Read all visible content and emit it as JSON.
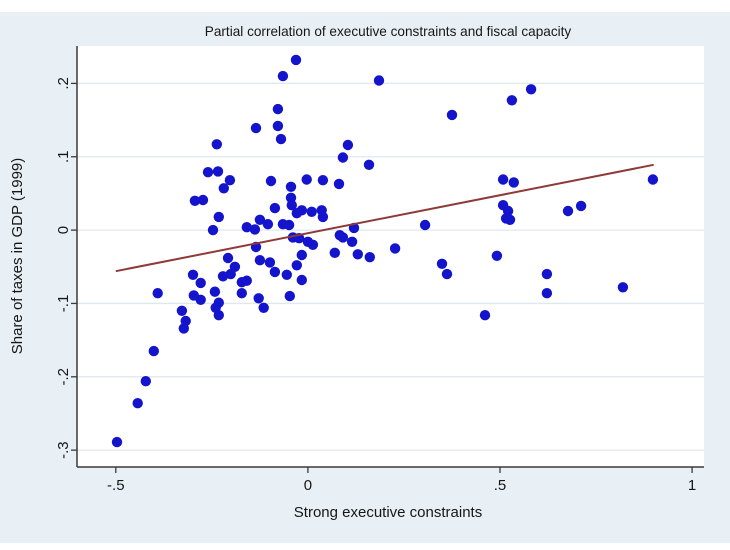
{
  "colors": {
    "figure_background": "#e9f0f5",
    "page_background": "#ffffff",
    "plot_background": "#ffffff",
    "gridline": "#dde8ef",
    "axis": "#3a3a38",
    "marker": "#1414cc",
    "fit_line": "#8e3a38",
    "text": "#161616"
  },
  "chart_data": {
    "type": "scatter",
    "title": "Partial correlation of executive constraints and fiscal capacity",
    "xlabel": "Strong executive constraints",
    "ylabel": "Share of taxes in GDP (1999)",
    "xlim": [
      -0.601,
      1.031
    ],
    "ylim": [
      -0.323,
      0.251
    ],
    "grid": "horizontal",
    "legend": false,
    "x_ticks": [
      {
        "value": -0.5,
        "label": "-.5"
      },
      {
        "value": 0,
        "label": "0"
      },
      {
        "value": 0.5,
        "label": ".5"
      },
      {
        "value": 1,
        "label": "1"
      }
    ],
    "y_ticks": [
      {
        "value": 0.2,
        "label": ".2"
      },
      {
        "value": 0.1,
        "label": ".1"
      },
      {
        "value": 0,
        "label": "0"
      },
      {
        "value": -0.1,
        "label": "-.1"
      },
      {
        "value": -0.2,
        "label": "-.2"
      },
      {
        "value": -0.3,
        "label": "-.3"
      }
    ],
    "series": [
      {
        "name": "observations",
        "type": "scatter",
        "points": [
          [
            -0.031,
            0.232
          ],
          [
            -0.065,
            0.21
          ],
          [
            0.185,
            0.204
          ],
          [
            -0.078,
            0.165
          ],
          [
            -0.135,
            0.139
          ],
          [
            -0.078,
            0.142
          ],
          [
            -0.07,
            0.124
          ],
          [
            -0.237,
            0.117
          ],
          [
            0.104,
            0.116
          ],
          [
            0.091,
            0.099
          ],
          [
            0.159,
            0.089
          ],
          [
            0.375,
            0.157
          ],
          [
            0.531,
            0.177
          ],
          [
            0.581,
            0.192
          ],
          [
            0.898,
            0.069
          ],
          [
            -0.26,
            0.079
          ],
          [
            -0.234,
            0.08
          ],
          [
            -0.203,
            0.068
          ],
          [
            -0.219,
            0.057
          ],
          [
            -0.294,
            0.04
          ],
          [
            -0.273,
            0.041
          ],
          [
            -0.096,
            0.067
          ],
          [
            -0.044,
            0.059
          ],
          [
            -0.003,
            0.069
          ],
          [
            0.039,
            0.068
          ],
          [
            0.081,
            0.063
          ],
          [
            -0.044,
            0.044
          ],
          [
            -0.042,
            0.034
          ],
          [
            -0.086,
            0.03
          ],
          [
            -0.016,
            0.027
          ],
          [
            -0.029,
            0.023
          ],
          [
            0.01,
            0.025
          ],
          [
            0.036,
            0.027
          ],
          [
            0.039,
            0.018
          ],
          [
            -0.125,
            0.014
          ],
          [
            -0.104,
            0.008
          ],
          [
            -0.065,
            0.008
          ],
          [
            -0.049,
            0.007
          ],
          [
            -0.232,
            0.018
          ],
          [
            -0.247,
            0.0
          ],
          [
            -0.159,
            0.004
          ],
          [
            -0.138,
            0.001
          ],
          [
            0.305,
            0.007
          ],
          [
            0.508,
            0.069
          ],
          [
            0.536,
            0.065
          ],
          [
            0.508,
            0.034
          ],
          [
            0.521,
            0.026
          ],
          [
            0.516,
            0.016
          ],
          [
            0.526,
            0.014
          ],
          [
            0.677,
            0.026
          ],
          [
            0.711,
            0.033
          ],
          [
            0.12,
            0.003
          ],
          [
            0.083,
            -0.007
          ],
          [
            0.091,
            -0.01
          ],
          [
            0.115,
            -0.016
          ],
          [
            0.13,
            -0.033
          ],
          [
            0.161,
            -0.037
          ],
          [
            0.227,
            -0.025
          ],
          [
            -0.039,
            -0.01
          ],
          [
            -0.023,
            -0.011
          ],
          [
            0.0,
            -0.016
          ],
          [
            0.013,
            -0.02
          ],
          [
            0.07,
            -0.031
          ],
          [
            -0.016,
            -0.034
          ],
          [
            -0.135,
            -0.023
          ],
          [
            -0.208,
            -0.038
          ],
          [
            -0.19,
            -0.05
          ],
          [
            -0.125,
            -0.041
          ],
          [
            -0.099,
            -0.044
          ],
          [
            -0.086,
            -0.057
          ],
          [
            -0.055,
            -0.061
          ],
          [
            -0.029,
            -0.048
          ],
          [
            -0.016,
            -0.068
          ],
          [
            0.349,
            -0.046
          ],
          [
            0.362,
            -0.06
          ],
          [
            0.492,
            -0.035
          ],
          [
            0.622,
            -0.06
          ],
          [
            -0.299,
            -0.061
          ],
          [
            -0.279,
            -0.072
          ],
          [
            -0.221,
            -0.063
          ],
          [
            -0.201,
            -0.06
          ],
          [
            -0.172,
            -0.071
          ],
          [
            -0.159,
            -0.069
          ],
          [
            -0.391,
            -0.086
          ],
          [
            -0.297,
            -0.089
          ],
          [
            -0.279,
            -0.095
          ],
          [
            -0.242,
            -0.084
          ],
          [
            -0.232,
            -0.099
          ],
          [
            -0.172,
            -0.086
          ],
          [
            -0.128,
            -0.093
          ],
          [
            -0.115,
            -0.106
          ],
          [
            -0.328,
            -0.11
          ],
          [
            -0.318,
            -0.124
          ],
          [
            -0.24,
            -0.106
          ],
          [
            -0.232,
            -0.116
          ],
          [
            -0.047,
            -0.09
          ],
          [
            0.461,
            -0.116
          ],
          [
            0.622,
            -0.086
          ],
          [
            0.82,
            -0.078
          ],
          [
            -0.323,
            -0.134
          ],
          [
            -0.401,
            -0.165
          ],
          [
            -0.422,
            -0.206
          ],
          [
            -0.443,
            -0.236
          ],
          [
            -0.497,
            -0.289
          ]
        ]
      },
      {
        "name": "fitted line",
        "type": "line",
        "points": [
          [
            -0.5,
            -0.056
          ],
          [
            0.9,
            0.089
          ]
        ]
      }
    ]
  }
}
